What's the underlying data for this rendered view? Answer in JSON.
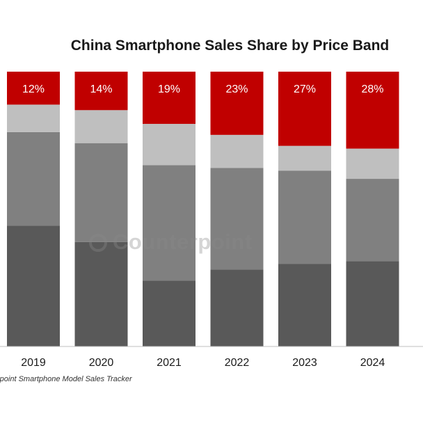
{
  "chart_data": {
    "type": "bar",
    "stacked": true,
    "title": "China Smartphone Sales Share by Price Band",
    "categories": [
      "2019",
      "2020",
      "2021",
      "2022",
      "2023",
      "2024"
    ],
    "series": [
      {
        "values": [
          44,
          38,
          24,
          28,
          30,
          31
        ],
        "color": "#595959"
      },
      {
        "values": [
          34,
          36,
          42,
          37,
          34,
          30
        ],
        "color": "#808080"
      },
      {
        "values": [
          10,
          12,
          15,
          12,
          9,
          11
        ],
        "color": "#bfbfbf"
      },
      {
        "values": [
          12,
          14,
          19,
          23,
          27,
          28
        ],
        "color": "#c00000",
        "labels": [
          "12%",
          "14%",
          "19%",
          "23%",
          "27%",
          "28%"
        ]
      }
    ],
    "ylim": [
      0,
      100
    ],
    "grid": false,
    "legend": "none"
  },
  "source_note": "rpoint Smartphone Model Sales Tracker",
  "watermark": "Counterpoint"
}
